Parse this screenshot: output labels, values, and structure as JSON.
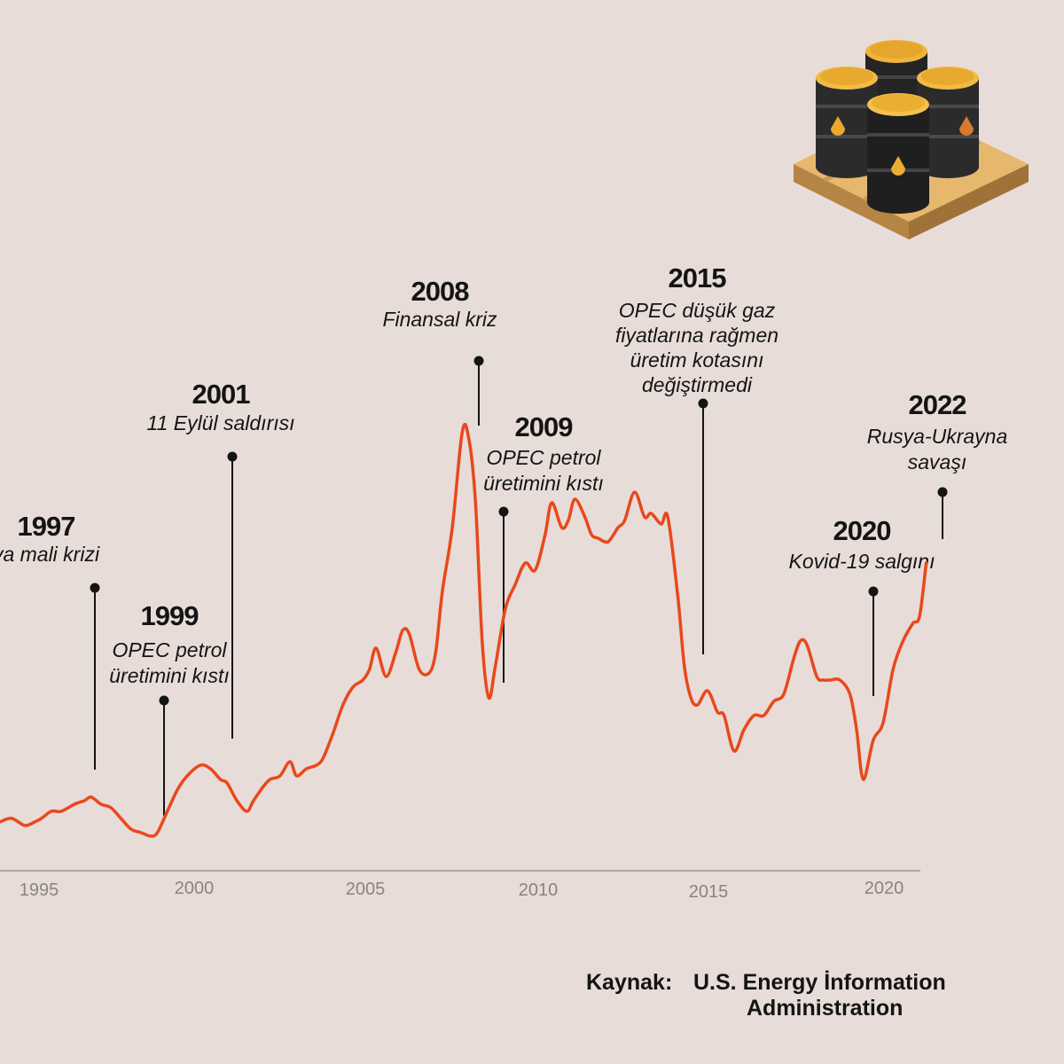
{
  "chart_data": {
    "type": "line",
    "title": "",
    "xlabel": "",
    "ylabel": "",
    "x_ticks": [
      "1995",
      "2000",
      "2005",
      "2010",
      "2015",
      "2020"
    ],
    "xlim": [
      1994.25,
      2022.8
    ],
    "ylim": [
      0,
      130
    ],
    "grid": false,
    "legend": "none",
    "series": [
      {
        "color": "#e8481c",
        "x": [
          1994.25,
          1994.6,
          1995.0,
          1995.3,
          1995.5,
          1995.8,
          1996.1,
          1996.5,
          1996.8,
          1997.0,
          1997.3,
          1997.6,
          1997.9,
          1998.2,
          1998.5,
          1998.8,
          1999.0,
          1999.3,
          1999.6,
          1999.9,
          2000.3,
          2000.6,
          2000.9,
          2001.1,
          2001.4,
          2001.7,
          2001.9,
          2002.2,
          2002.4,
          2002.7,
          2003.0,
          2003.2,
          2003.5,
          2003.8,
          2004.0,
          2004.3,
          2004.6,
          2004.9,
          2005.2,
          2005.4,
          2005.6,
          2005.9,
          2006.2,
          2006.4,
          2006.6,
          2006.9,
          2007.2,
          2007.4,
          2007.6,
          2007.9,
          2008.2,
          2008.4,
          2008.6,
          2008.8,
          2009.0,
          2009.2,
          2009.5,
          2009.8,
          2010.1,
          2010.4,
          2010.7,
          2010.9,
          2011.2,
          2011.4,
          2011.6,
          2011.9,
          2012.1,
          2012.3,
          2012.6,
          2012.9,
          2013.1,
          2013.4,
          2013.7,
          2013.9,
          2014.2,
          2014.4,
          2014.7,
          2014.9,
          2015.1,
          2015.3,
          2015.6,
          2015.9,
          2016.1,
          2016.4,
          2016.7,
          2017.0,
          2017.3,
          2017.6,
          2017.9,
          2018.2,
          2018.4,
          2018.6,
          2018.9,
          2019.1,
          2019.3,
          2019.6,
          2019.9,
          2020.1,
          2020.3,
          2020.6,
          2020.9,
          2021.2,
          2021.5,
          2021.8,
          2022.0,
          2022.2
        ],
        "values": [
          12,
          13,
          11,
          12,
          13,
          15,
          15,
          17,
          18,
          19,
          17,
          16,
          13,
          10,
          9,
          8,
          9,
          15,
          21,
          25,
          28,
          27,
          24,
          23,
          18,
          15,
          18,
          22,
          24,
          25,
          29,
          25,
          27,
          28,
          30,
          37,
          45,
          50,
          52,
          55,
          61,
          53,
          60,
          66,
          65,
          55,
          54,
          60,
          77,
          95,
          122,
          120,
          102,
          63,
          47,
          56,
          72,
          79,
          85,
          83,
          93,
          102,
          95,
          97,
          103,
          98,
          93,
          92,
          91,
          95,
          97,
          105,
          98,
          99,
          96,
          98,
          76,
          56,
          47,
          45,
          49,
          43,
          42,
          32,
          38,
          42,
          42,
          46,
          48,
          58,
          63,
          62,
          53,
          52,
          52,
          52,
          48,
          38,
          24,
          35,
          40,
          55,
          63,
          68,
          70,
          85
        ]
      }
    ],
    "annotations": [
      {
        "year": "1997",
        "text": [
          "ya mali krizi"
        ],
        "x": 1997.1
      },
      {
        "year": "1999",
        "text": [
          "OPEC petrol",
          "üretimini kıstı"
        ],
        "x": 1999.05
      },
      {
        "year": "2001",
        "text": [
          "11 Eylül saldırısı"
        ],
        "x": 2001.1
      },
      {
        "year": "2008",
        "text": [
          "Finansal kriz"
        ],
        "x": 2008.3
      },
      {
        "year": "2009",
        "text": [
          "OPEC petrol",
          "üretimini kıstı"
        ],
        "x": 2009.05
      },
      {
        "year": "2015",
        "text": [
          "OPEC düşük gaz",
          "fiyatlarına rağmen",
          "üretim kotasını",
          "değiştirmedi"
        ],
        "x": 2015.0
      },
      {
        "year": "2020",
        "text": [
          "Kovid-19 salgını"
        ],
        "x": 2020.0
      },
      {
        "year": "2022",
        "text": [
          "Rusya-Ukrayna",
          "savaşı"
        ],
        "x": 2022.1
      }
    ]
  },
  "source": {
    "label": "Kaynak:",
    "lines": [
      "U.S. Energy İnformation",
      "Administration"
    ]
  },
  "illustration": {
    "icon": "oil-barrels-on-pallet-icon"
  }
}
